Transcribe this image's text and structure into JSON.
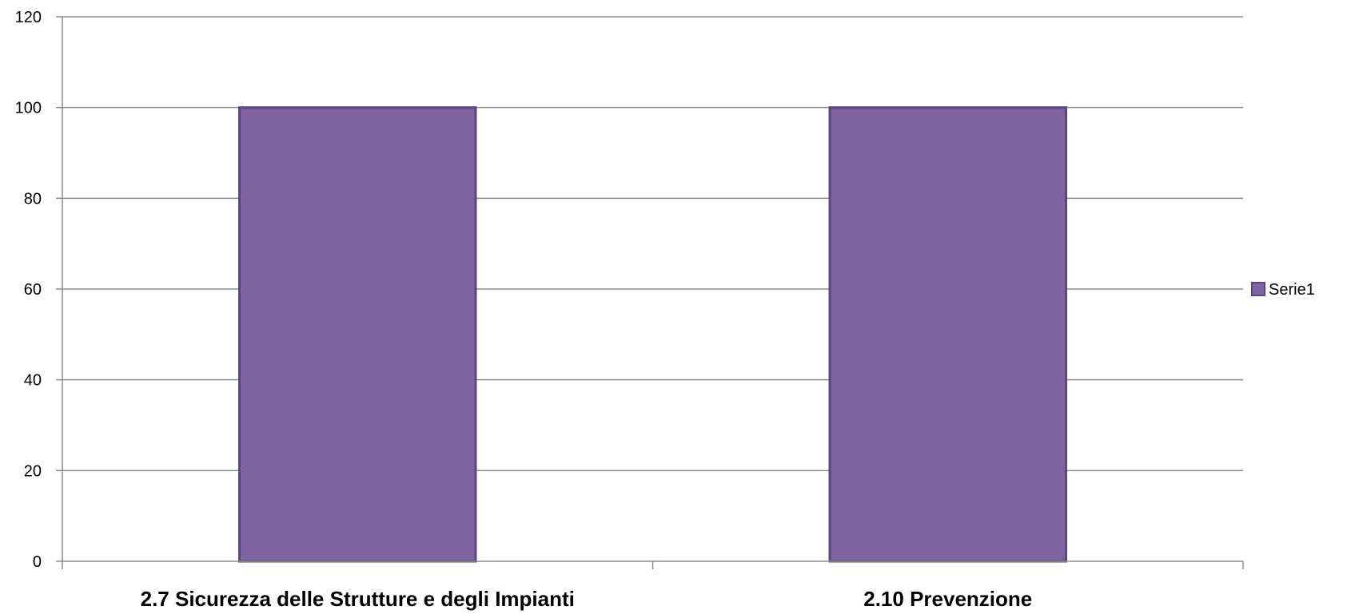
{
  "chart_data": {
    "type": "bar",
    "categories": [
      "2.7 Sicurezza delle Strutture e degli Impianti",
      "2.10 Prevenzione"
    ],
    "series": [
      {
        "name": "Serie1",
        "values": [
          100,
          100
        ]
      }
    ],
    "ylim": [
      0,
      120
    ],
    "yticks": [
      0,
      20,
      40,
      60,
      80,
      100,
      120
    ],
    "grid": true,
    "legend": "right",
    "colors": {
      "bar_fill": "#8064a2",
      "bar_stroke": "#5c4580",
      "grid": "#8c8c8c",
      "axis": "#8c8c8c"
    }
  }
}
